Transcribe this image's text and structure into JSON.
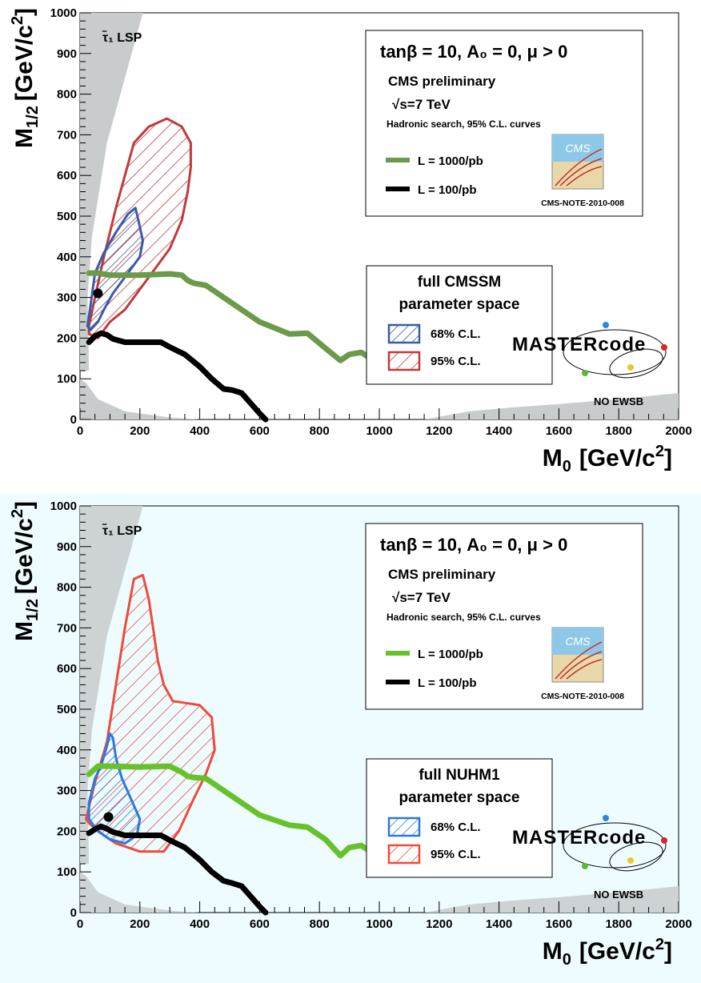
{
  "chart_data": [
    {
      "type": "area",
      "background": "#ffffff",
      "xlabel": "M",
      "xlabel_sub": "0",
      "xlabel_unit": "[GeV/c",
      "xlabel_sup": "2",
      "xlabel_close": "]",
      "ylabel": "M",
      "ylabel_sub": "1/2",
      "ylabel_unit": "[GeV/c",
      "ylabel_sup": "2",
      "ylabel_close": "]",
      "xlim": [
        0,
        2000
      ],
      "ylim": [
        0,
        1000
      ],
      "x_ticks": [
        "0",
        "200",
        "400",
        "600",
        "800",
        "1000",
        "1200",
        "1400",
        "1600",
        "1800",
        "2000"
      ],
      "y_ticks": [
        "0",
        "100",
        "200",
        "300",
        "400",
        "500",
        "600",
        "700",
        "800",
        "900",
        "1000"
      ],
      "info_box": {
        "line1": "tanβ = 10, A₀ = 0, μ > 0",
        "line2": "CMS preliminary",
        "line3": "√s=7 TeV",
        "line4": "Hadronic search, 95% C.L. curves",
        "legend": [
          {
            "label": "L = 1000/pb",
            "color": "#6a9a4a"
          },
          {
            "label": "L = 100/pb",
            "color": "#000000"
          }
        ],
        "cms_logo_text": "CMS",
        "note": "CMS-NOTE-2010-008"
      },
      "fit_box": {
        "line1": "full CMSSM",
        "line2": "parameter space",
        "items": [
          {
            "label": "68% C.L.",
            "color": "#3a5aa8"
          },
          {
            "label": "95% C.L.",
            "color": "#c03a3a"
          }
        ]
      },
      "mastercode": "MASTERcode",
      "region_labels": {
        "stau_lsp": "τ̃₁ LSP",
        "no_ewsb": "NO EWSB"
      },
      "colors": {
        "cl68": "#3a5aa8",
        "cl95": "#c03a3a",
        "reach_1000": "#6a9a4a",
        "reach_100": "#000000",
        "excluded": "#c8cccc"
      },
      "series": [
        {
          "name": "68% C.L.",
          "polygon": [
            [
              25,
              230
            ],
            [
              35,
              280
            ],
            [
              50,
              360
            ],
            [
              80,
              410
            ],
            [
              120,
              460
            ],
            [
              160,
              505
            ],
            [
              185,
              520
            ],
            [
              195,
              490
            ],
            [
              210,
              440
            ],
            [
              200,
              400
            ],
            [
              170,
              370
            ],
            [
              140,
              340
            ],
            [
              110,
              310
            ],
            [
              80,
              270
            ],
            [
              60,
              240
            ],
            [
              35,
              220
            ]
          ]
        },
        {
          "name": "95% C.L.",
          "polygon": [
            [
              30,
              230
            ],
            [
              50,
              300
            ],
            [
              80,
              400
            ],
            [
              120,
              520
            ],
            [
              150,
              600
            ],
            [
              180,
              680
            ],
            [
              230,
              720
            ],
            [
              290,
              740
            ],
            [
              340,
              720
            ],
            [
              370,
              680
            ],
            [
              370,
              620
            ],
            [
              360,
              560
            ],
            [
              340,
              490
            ],
            [
              300,
              420
            ],
            [
              260,
              380
            ],
            [
              200,
              320
            ],
            [
              150,
              270
            ],
            [
              100,
              240
            ],
            [
              60,
              200
            ],
            [
              30,
              210
            ]
          ]
        },
        {
          "name": "L = 1000/pb",
          "x": [
            30,
            60,
            100,
            200,
            300,
            340,
            360,
            380,
            420,
            500,
            600,
            700,
            760,
            820,
            870,
            900,
            940,
            960
          ],
          "y": [
            360,
            360,
            355,
            355,
            358,
            355,
            342,
            335,
            330,
            290,
            240,
            210,
            212,
            175,
            145,
            160,
            165,
            155
          ]
        },
        {
          "name": "L = 100/pb",
          "x": [
            30,
            50,
            70,
            90,
            110,
            150,
            200,
            270,
            300,
            350,
            400,
            440,
            480,
            510,
            540,
            570,
            600,
            620
          ],
          "y": [
            190,
            205,
            212,
            208,
            198,
            190,
            190,
            190,
            178,
            160,
            130,
            100,
            75,
            72,
            65,
            40,
            15,
            0
          ]
        }
      ],
      "best_fit": {
        "x": 60,
        "y": 310
      }
    },
    {
      "type": "area",
      "background": "#effcff",
      "xlabel": "M",
      "xlabel_sub": "0",
      "xlabel_unit": "[GeV/c",
      "xlabel_sup": "2",
      "xlabel_close": "]",
      "ylabel": "M",
      "ylabel_sub": "1/2",
      "ylabel_unit": "[GeV/c",
      "ylabel_sup": "2",
      "ylabel_close": "]",
      "xlim": [
        0,
        2000
      ],
      "ylim": [
        0,
        1000
      ],
      "x_ticks": [
        "0",
        "200",
        "400",
        "600",
        "800",
        "1000",
        "1200",
        "1400",
        "1600",
        "1800",
        "2000"
      ],
      "y_ticks": [
        "0",
        "100",
        "200",
        "300",
        "400",
        "500",
        "600",
        "700",
        "800",
        "900",
        "1000"
      ],
      "info_box": {
        "line1": "tanβ = 10, A₀ = 0, μ > 0",
        "line2": "CMS preliminary",
        "line3": "√s=7 TeV",
        "line4": "Hadronic search, 95% C.L. curves",
        "legend": [
          {
            "label": "L = 1000/pb",
            "color": "#66c22a"
          },
          {
            "label": "L = 100/pb",
            "color": "#000000"
          }
        ],
        "cms_logo_text": "CMS",
        "note": "CMS-NOTE-2010-008"
      },
      "fit_box": {
        "line1": "full NUHM1",
        "line2": "parameter space",
        "items": [
          {
            "label": "68% C.L.",
            "color": "#2a78e0"
          },
          {
            "label": "95% C.L.",
            "color": "#ee4a3a"
          }
        ]
      },
      "mastercode": "MASTERcode",
      "region_labels": {
        "stau_lsp": "τ̃₁ LSP",
        "no_ewsb": "NO EWSB"
      },
      "colors": {
        "cl68": "#2a78e0",
        "cl95": "#ee4a3a",
        "reach_1000": "#66c22a",
        "reach_100": "#000000",
        "excluded": "#cdd3d4"
      },
      "series": [
        {
          "name": "68% C.L.",
          "polygon": [
            [
              30,
              270
            ],
            [
              50,
              330
            ],
            [
              70,
              360
            ],
            [
              90,
              410
            ],
            [
              100,
              440
            ],
            [
              110,
              430
            ],
            [
              120,
              380
            ],
            [
              140,
              330
            ],
            [
              170,
              280
            ],
            [
              200,
              230
            ],
            [
              190,
              190
            ],
            [
              150,
              170
            ],
            [
              100,
              180
            ],
            [
              60,
              200
            ],
            [
              30,
              230
            ]
          ]
        },
        {
          "name": "95% C.L.",
          "polygon": [
            [
              20,
              230
            ],
            [
              50,
              320
            ],
            [
              90,
              420
            ],
            [
              120,
              560
            ],
            [
              150,
              700
            ],
            [
              180,
              820
            ],
            [
              210,
              830
            ],
            [
              230,
              770
            ],
            [
              240,
              720
            ],
            [
              260,
              620
            ],
            [
              280,
              560
            ],
            [
              310,
              520
            ],
            [
              400,
              510
            ],
            [
              440,
              480
            ],
            [
              450,
              400
            ],
            [
              420,
              340
            ],
            [
              380,
              280
            ],
            [
              330,
              200
            ],
            [
              280,
              150
            ],
            [
              200,
              150
            ],
            [
              120,
              170
            ],
            [
              60,
              200
            ],
            [
              30,
              220
            ]
          ]
        },
        {
          "name": "L = 1000/pb",
          "x": [
            30,
            60,
            100,
            200,
            300,
            340,
            360,
            380,
            420,
            500,
            600,
            700,
            760,
            820,
            870,
            900,
            940,
            960
          ],
          "y": [
            340,
            360,
            360,
            358,
            360,
            345,
            335,
            332,
            330,
            290,
            240,
            215,
            210,
            180,
            140,
            160,
            165,
            155
          ]
        },
        {
          "name": "L = 100/pb",
          "x": [
            30,
            50,
            70,
            90,
            110,
            150,
            200,
            270,
            300,
            350,
            400,
            440,
            480,
            510,
            540,
            570,
            600,
            620
          ],
          "y": [
            195,
            205,
            212,
            206,
            198,
            190,
            190,
            190,
            178,
            160,
            130,
            100,
            78,
            72,
            65,
            40,
            15,
            0
          ]
        }
      ],
      "best_fit": {
        "x": 95,
        "y": 235
      }
    }
  ]
}
